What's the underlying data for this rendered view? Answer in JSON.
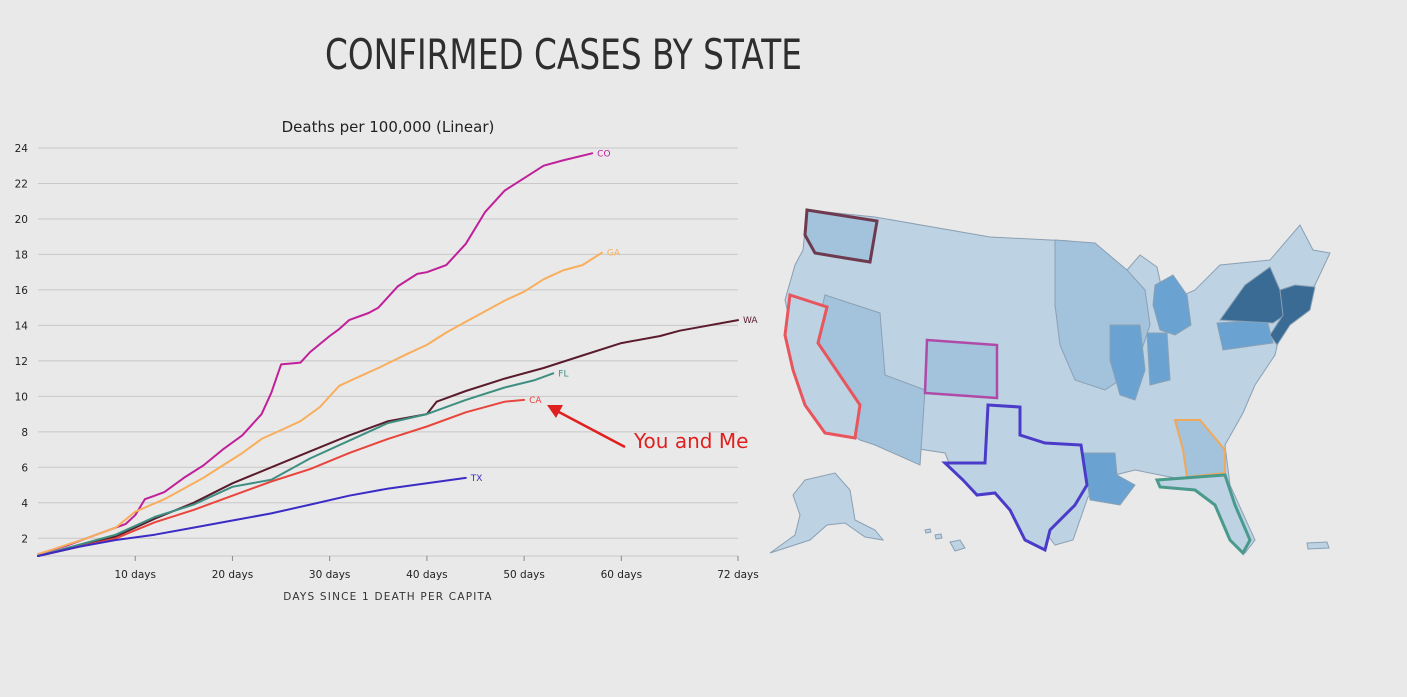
{
  "page": {
    "title": "CONFIRMED CASES BY STATE"
  },
  "annotation": {
    "text": "You and Me",
    "color": "#e02020"
  },
  "chart_data": {
    "type": "line",
    "title": "Deaths per 100,000 (Linear)",
    "xlabel": "DAYS SINCE 1 DEATH PER CAPITA",
    "ylabel": "",
    "xlim": [
      0,
      72
    ],
    "ylim": [
      1,
      24
    ],
    "x_ticks": [
      10,
      20,
      30,
      40,
      50,
      60,
      72
    ],
    "x_tick_labels": [
      "10 days",
      "20 days",
      "30 days",
      "40 days",
      "50 days",
      "60 days",
      "72 days"
    ],
    "y_ticks": [
      2,
      4,
      6,
      8,
      10,
      12,
      14,
      16,
      18,
      20,
      22,
      24
    ],
    "grid": "horizontal",
    "series": [
      {
        "name": "CO",
        "color": "#c0209a",
        "x": [
          0,
          3,
          6,
          9,
          10,
          11,
          12,
          13,
          15,
          17,
          19,
          21,
          23,
          24,
          25,
          27,
          28,
          30,
          31,
          32,
          34,
          35,
          37,
          39,
          40,
          42,
          44,
          46,
          48,
          50,
          52,
          54,
          57
        ],
        "y": [
          1.1,
          1.6,
          2.2,
          2.8,
          3.3,
          4.2,
          4.4,
          4.6,
          5.4,
          6.1,
          7.0,
          7.8,
          9.0,
          10.2,
          11.8,
          11.9,
          12.5,
          13.4,
          13.8,
          14.3,
          14.7,
          15.0,
          16.2,
          16.9,
          17.0,
          17.4,
          18.6,
          20.4,
          21.6,
          22.3,
          23.0,
          23.3,
          23.7
        ]
      },
      {
        "name": "GA",
        "color": "#f8ae5c",
        "x": [
          0,
          5,
          8,
          10,
          13,
          15,
          17,
          19,
          21,
          23,
          25,
          27,
          29,
          31,
          33,
          35,
          38,
          40,
          42,
          44,
          46,
          48,
          50,
          52,
          54,
          56,
          58
        ],
        "y": [
          1.1,
          2.0,
          2.6,
          3.5,
          4.2,
          4.8,
          5.4,
          6.1,
          6.8,
          7.6,
          8.1,
          8.6,
          9.4,
          10.6,
          11.1,
          11.6,
          12.4,
          12.9,
          13.6,
          14.2,
          14.8,
          15.4,
          15.9,
          16.6,
          17.1,
          17.4,
          18.1
        ]
      },
      {
        "name": "WA",
        "color": "#5a1c2c",
        "x": [
          0,
          4,
          8,
          12,
          16,
          20,
          24,
          28,
          32,
          36,
          40,
          41,
          44,
          48,
          52,
          56,
          60,
          64,
          66,
          68,
          70,
          72
        ],
        "y": [
          1.0,
          1.5,
          2.1,
          3.1,
          4.0,
          5.1,
          6.0,
          6.9,
          7.8,
          8.6,
          9.0,
          9.7,
          10.3,
          11.0,
          11.6,
          12.3,
          13.0,
          13.4,
          13.7,
          13.9,
          14.1,
          14.3
        ]
      },
      {
        "name": "FL",
        "color": "#3e8f82",
        "x": [
          0,
          4,
          8,
          12,
          16,
          20,
          24,
          28,
          32,
          36,
          40,
          44,
          48,
          51,
          53
        ],
        "y": [
          1.0,
          1.6,
          2.2,
          3.2,
          3.9,
          4.9,
          5.3,
          6.5,
          7.5,
          8.5,
          9.0,
          9.8,
          10.5,
          10.9,
          11.3
        ]
      },
      {
        "name": "CA",
        "color": "#e8453c",
        "x": [
          0,
          4,
          8,
          12,
          16,
          20,
          24,
          28,
          32,
          36,
          40,
          44,
          48,
          50
        ],
        "y": [
          1.0,
          1.5,
          2.0,
          2.9,
          3.6,
          4.4,
          5.2,
          5.9,
          6.8,
          7.6,
          8.3,
          9.1,
          9.7,
          9.8
        ]
      },
      {
        "name": "TX",
        "color": "#3a2cc4",
        "x": [
          0,
          4,
          8,
          12,
          16,
          20,
          24,
          28,
          32,
          36,
          40,
          44
        ],
        "y": [
          1.0,
          1.5,
          1.9,
          2.2,
          2.6,
          3.0,
          3.4,
          3.9,
          4.4,
          4.8,
          5.1,
          5.4
        ]
      }
    ]
  },
  "map": {
    "label": "United States choropleth map",
    "outlined_states": [
      "WA",
      "CA",
      "CO",
      "TX",
      "FL",
      "GA"
    ],
    "fill_colors": {
      "light": "#bdd2e2",
      "mid": "#a3c2dc",
      "strong": "#6aa3d2",
      "dark": "#3a6b94"
    }
  }
}
